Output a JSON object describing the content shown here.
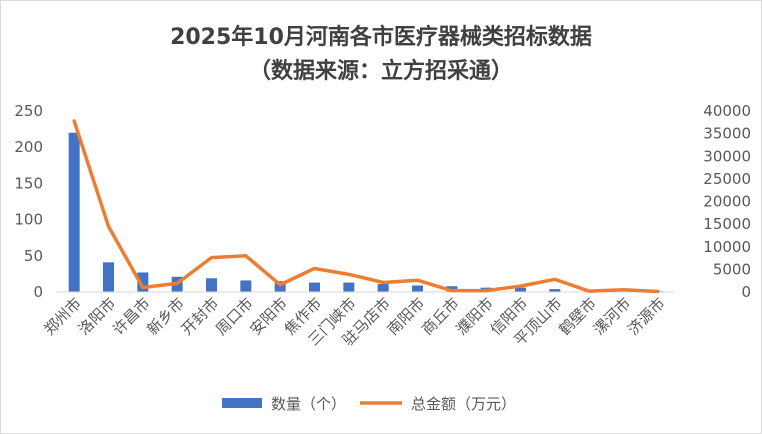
{
  "chart_data": {
    "type": "bar+line",
    "title_line1": "2025年10月河南各市医疗器械类招标数据",
    "title_line2": "（数据来源：立方招采通）",
    "categories": [
      "郑州市",
      "洛阳市",
      "许昌市",
      "新乡市",
      "开封市",
      "周口市",
      "安阳市",
      "焦作市",
      "三门峡市",
      "驻马店市",
      "南阳市",
      "商丘市",
      "濮阳市",
      "信阳市",
      "平顶山市",
      "鹤壁市",
      "漯河市",
      "济源市"
    ],
    "series": [
      {
        "name": "数量（个）",
        "type": "bar",
        "axis": "left",
        "color": "#4472C4",
        "values": [
          220,
          41,
          27,
          21,
          19,
          16,
          15,
          13,
          13,
          11,
          9,
          8,
          6,
          6,
          4,
          2,
          2,
          1
        ]
      },
      {
        "name": "总金额（万元）",
        "type": "line",
        "axis": "right",
        "color": "#ED7D31",
        "values": [
          37800,
          14500,
          1000,
          1900,
          7600,
          8000,
          1600,
          5200,
          3900,
          2100,
          2600,
          300,
          300,
          1300,
          2800,
          200,
          500,
          100
        ]
      }
    ],
    "y_left": {
      "min": 0,
      "max": 250,
      "ticks": [
        "0",
        "50",
        "100",
        "150",
        "200",
        "250"
      ]
    },
    "y_right": {
      "min": 0,
      "max": 40000,
      "ticks": [
        "0",
        "5000",
        "10000",
        "15000",
        "20000",
        "25000",
        "30000",
        "35000",
        "40000"
      ]
    },
    "grid": false,
    "legend_position": "bottom"
  }
}
